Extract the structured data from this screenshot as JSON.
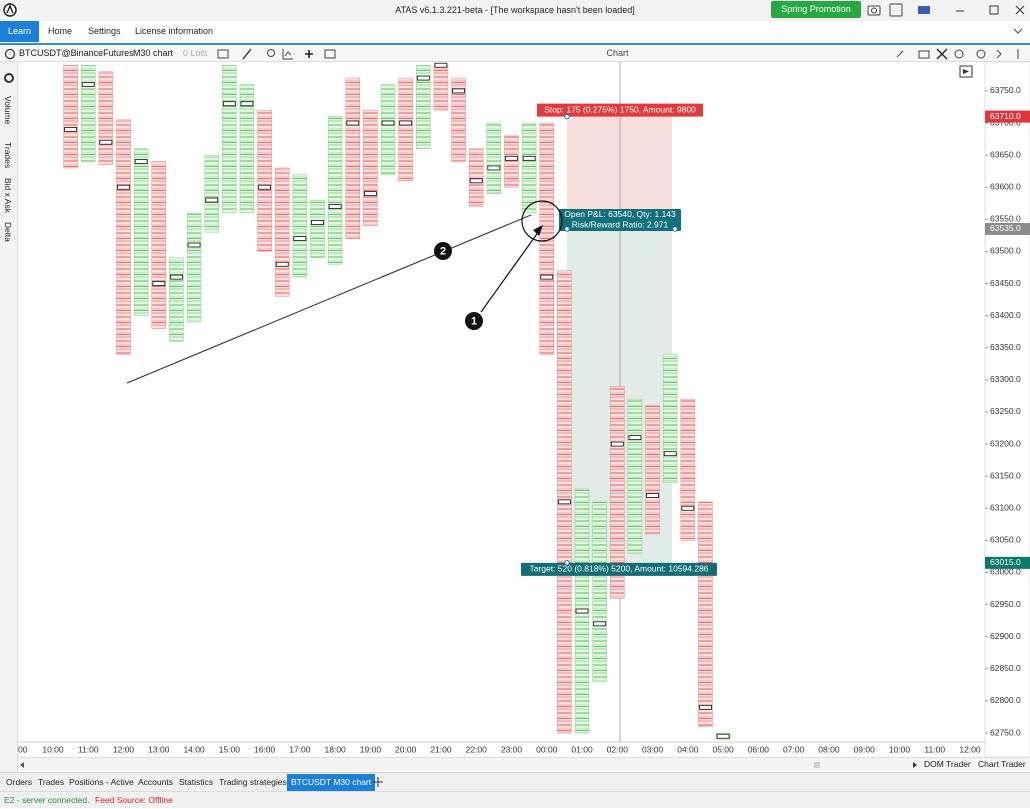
{
  "window": {
    "title": "ATAS v6.1.3.221-beta - [The workspace hasn't been loaded]",
    "promo_button": "Spring Promotion"
  },
  "menu": {
    "tabs": [
      "Learn",
      "Home",
      "Settings",
      "License information"
    ]
  },
  "chart_toolbar": {
    "instrument": "BTCUSDT@BinanceFutures",
    "timeframe": "M30 chart",
    "lots": "0 Lots",
    "title": "Chart"
  },
  "side_panel": [
    "Volume",
    "Trades",
    "Bid x Ask",
    "Delta"
  ],
  "chart_data": {
    "type": "footprint",
    "ylim": [
      62736,
      63795
    ],
    "yticks": [
      {
        "value": 63750,
        "label": "63750.0"
      },
      {
        "value": 63700,
        "label": "63700.0"
      },
      {
        "value": 63650,
        "label": "63650.0"
      },
      {
        "value": 63600,
        "label": "63600.0"
      },
      {
        "value": 63550,
        "label": "63550.0"
      },
      {
        "value": 63500,
        "label": "63500.0"
      },
      {
        "value": 63450,
        "label": "63450.0"
      },
      {
        "value": 63400,
        "label": "63400.0"
      },
      {
        "value": 63350,
        "label": "63350.0"
      },
      {
        "value": 63300,
        "label": "63300.0"
      },
      {
        "value": 63250,
        "label": "63250.0"
      },
      {
        "value": 63200,
        "label": "63200.0"
      },
      {
        "value": 63150,
        "label": "63150.0"
      },
      {
        "value": 63100,
        "label": "63100.0"
      },
      {
        "value": 63050,
        "label": "63050.0"
      },
      {
        "value": 63000,
        "label": "63000.0"
      },
      {
        "value": 62950,
        "label": "62950.0"
      },
      {
        "value": 62900,
        "label": "62900.0"
      },
      {
        "value": 62850,
        "label": "62850.0"
      },
      {
        "value": 62800,
        "label": "62800.0"
      },
      {
        "value": 62750,
        "label": "62750.0"
      }
    ],
    "x_labels": [
      "00",
      "10:00",
      "11:00",
      "12:00",
      "13:00",
      "14:00",
      "15:00",
      "16:00",
      "17:00",
      "18:00",
      "19:00",
      "20:00",
      "21:00",
      "22:00",
      "23:00",
      "00:00",
      "01:00",
      "02:00",
      "03:00",
      "04:00",
      "05:00",
      "06:00",
      "07:00",
      "08:00",
      "09:00",
      "10:00",
      "11:00",
      "12:00"
    ],
    "candles": {
      "highs": [
        63790,
        63790,
        63780,
        63705,
        63660,
        63640,
        63490,
        63560,
        63650,
        63790,
        63760,
        63720,
        63630,
        63620,
        63580,
        63710,
        63770,
        63720,
        63760,
        63770,
        63790,
        63790,
        63770,
        63660,
        63700,
        63680,
        63700,
        63700,
        63470,
        63130,
        63110,
        63290,
        63270,
        63260,
        63340,
        63270,
        63110,
        62750
      ],
      "lows": [
        63630,
        63640,
        63635,
        63340,
        63400,
        63380,
        63360,
        63390,
        63530,
        63560,
        63560,
        63500,
        63430,
        63460,
        63490,
        63480,
        63520,
        63540,
        63620,
        63610,
        63660,
        63720,
        63640,
        63570,
        63590,
        63600,
        63560,
        63340,
        62750,
        62750,
        62830,
        62960,
        63030,
        63060,
        63140,
        63050,
        62760,
        62740
      ],
      "pocs": [
        63690,
        63760,
        63670,
        63600,
        63640,
        63450,
        63460,
        63510,
        63580,
        63730,
        63730,
        63600,
        63480,
        63520,
        63545,
        63570,
        63700,
        63590,
        63700,
        63700,
        63770,
        63790,
        63750,
        63610,
        63630,
        63645,
        63645,
        63460,
        63110,
        62940,
        62920,
        63200,
        63210,
        63120,
        63185,
        63100,
        62790,
        62745
      ],
      "directions": [
        "down",
        "up",
        "down",
        "down",
        "up",
        "down",
        "up",
        "up",
        "up",
        "up",
        "up",
        "down",
        "down",
        "up",
        "up",
        "up",
        "down",
        "down",
        "up",
        "down",
        "up",
        "down",
        "down",
        "down",
        "up",
        "down",
        "up",
        "down",
        "down",
        "up",
        "up",
        "down",
        "up",
        "down",
        "up",
        "down",
        "down",
        "up"
      ]
    },
    "position": {
      "stop_label": "Stop: 175 (0.275%) 1750, Amount: 9800",
      "pnl_label": "Open P&L: 63540, Qty: 1.143",
      "rr_label": "Risk/Reward Ratio: 2.971",
      "target_label": "Target: 520 (0.818%) 5200, Amount: 10594.286",
      "stop_price": {
        "value": 63710,
        "label": "63710.0"
      },
      "entry_price": {
        "value": 63535,
        "label": "63535.0"
      },
      "target_price": {
        "value": 63015,
        "label": "63015.0"
      }
    },
    "annotations": [
      "1",
      "2"
    ]
  },
  "bottom_tabs": [
    "Orders",
    "Trades",
    "Positions - Active",
    "Accounts",
    "Statistics",
    "Trading strategies",
    "BTCUSDT M30 chart"
  ],
  "bottom_right": [
    "DOM Trader",
    "Chart Trader"
  ],
  "status": {
    "connection": "E2 - server connected.",
    "feed": "Feed Source: Offline"
  }
}
